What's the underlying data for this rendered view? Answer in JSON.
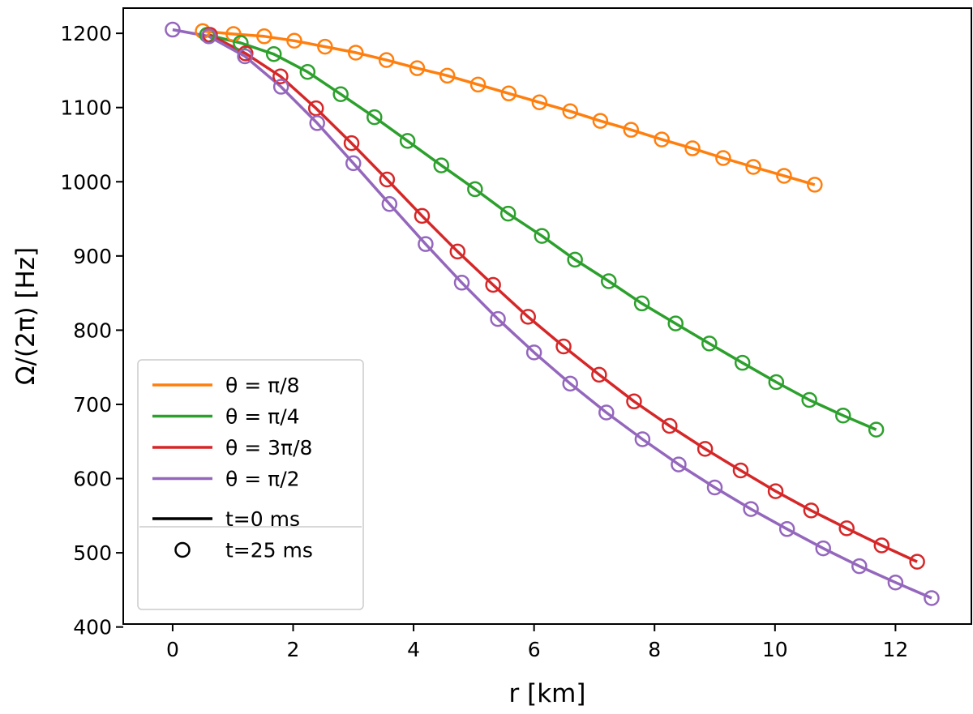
{
  "chart_data": {
    "type": "line",
    "xlabel": "r [km]",
    "ylabel": "Ω/(2π) [Hz]",
    "xlim": [
      -0.82,
      13.26
    ],
    "ylim": [
      404,
      1234
    ],
    "xticks": [
      0,
      2,
      4,
      6,
      8,
      10,
      12
    ],
    "yticks": [
      400,
      500,
      600,
      700,
      800,
      900,
      1000,
      1100,
      1200
    ],
    "grid": false,
    "legend_placement": "lower-left",
    "series": [
      {
        "name": "θ = π/8",
        "color": "#ff7f0e",
        "r": [
          0.5,
          1.01,
          1.52,
          2.02,
          2.53,
          3.04,
          3.55,
          4.06,
          4.56,
          5.07,
          5.58,
          6.09,
          6.6,
          7.1,
          7.61,
          8.12,
          8.63,
          9.14,
          9.64,
          10.15,
          10.66
        ],
        "values": [
          1203,
          1199,
          1196,
          1190,
          1182,
          1174,
          1164,
          1153,
          1143,
          1131,
          1119,
          1107,
          1095,
          1082,
          1070,
          1057,
          1045,
          1032,
          1020,
          1008,
          996
        ]
      },
      {
        "name": "θ = π/4",
        "color": "#2ca02c",
        "r": [
          0.57,
          1.13,
          1.68,
          2.24,
          2.79,
          3.35,
          3.9,
          4.46,
          5.02,
          5.57,
          6.13,
          6.68,
          7.24,
          7.79,
          8.35,
          8.91,
          9.46,
          10.02,
          10.57,
          11.13,
          11.68
        ],
        "values": [
          1198,
          1187,
          1172,
          1148,
          1118,
          1087,
          1055,
          1022,
          990,
          957,
          927,
          895,
          866,
          836,
          809,
          782,
          756,
          730,
          706,
          685,
          666
        ]
      },
      {
        "name": "θ = 3π/8",
        "color": "#d62728",
        "r": [
          0.62,
          1.21,
          1.79,
          2.38,
          2.97,
          3.56,
          4.14,
          4.73,
          5.32,
          5.9,
          6.49,
          7.08,
          7.66,
          8.25,
          8.84,
          9.43,
          10.01,
          10.6,
          11.19,
          11.77,
          12.36
        ],
        "values": [
          1198,
          1173,
          1142,
          1099,
          1052,
          1003,
          954,
          906,
          861,
          818,
          778,
          740,
          704,
          671,
          640,
          611,
          583,
          557,
          533,
          510,
          488
        ]
      },
      {
        "name": "θ = π/2",
        "color": "#9467bd",
        "r": [
          0,
          0.6,
          1.2,
          1.8,
          2.4,
          3.0,
          3.6,
          4.2,
          4.8,
          5.4,
          6.0,
          6.6,
          7.2,
          7.8,
          8.4,
          9.0,
          9.6,
          10.2,
          10.8,
          11.4,
          12.0,
          12.6
        ],
        "values": [
          1205,
          1196,
          1169,
          1128,
          1079,
          1025,
          970,
          916,
          864,
          815,
          770,
          728,
          689,
          653,
          619,
          588,
          559,
          532,
          506,
          482,
          460,
          439
        ]
      }
    ],
    "style_legend": [
      {
        "label": "t=0 ms",
        "marker": "line"
      },
      {
        "label": "t=25 ms",
        "marker": "circle"
      }
    ]
  }
}
